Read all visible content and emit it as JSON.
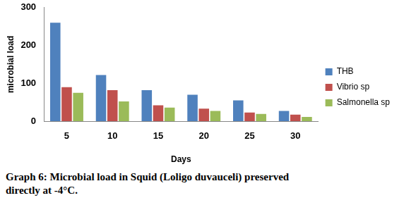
{
  "chart_data": {
    "type": "bar",
    "title": "Graph 6: Microbial load in Squid (Loligo duvauceli) preserved directly at -4°C.",
    "x_label": "Days",
    "y_label": "microbial load",
    "categories": [
      "5",
      "10",
      "15",
      "20",
      "25",
      "30"
    ],
    "series": [
      {
        "name": "THB",
        "color": "#4f81bd",
        "values": [
          260,
          122,
          82,
          70,
          55,
          27
        ]
      },
      {
        "name": "Vibrio sp",
        "color": "#c0504d",
        "values": [
          90,
          82,
          42,
          33,
          23,
          17
        ]
      },
      {
        "name": "Salmonella sp",
        "color": "#9bbb59",
        "values": [
          75,
          52,
          36,
          27,
          19,
          11
        ]
      }
    ],
    "ylim": [
      0,
      300
    ],
    "yticks": [
      0,
      100,
      200,
      300
    ],
    "grid": false,
    "legend": "right"
  }
}
